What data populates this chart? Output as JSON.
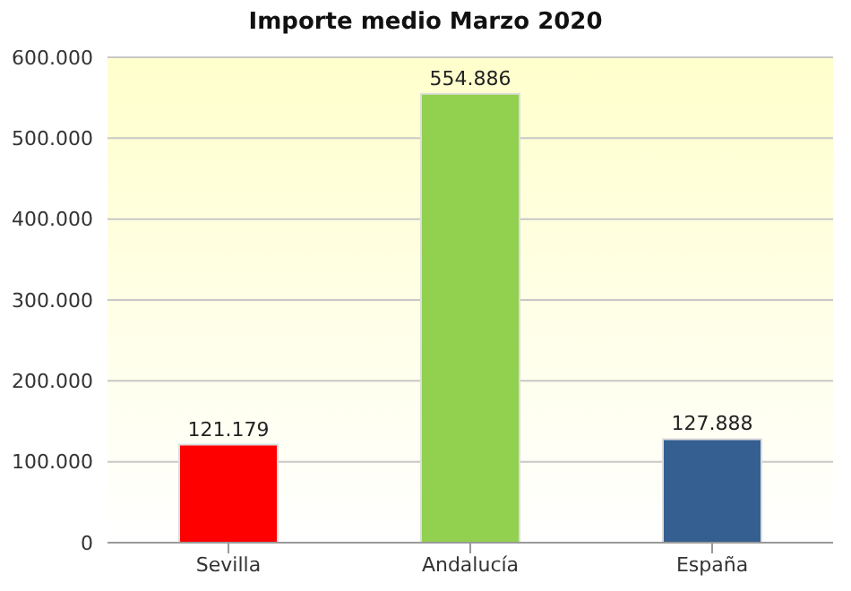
{
  "chart_data": {
    "type": "bar",
    "title": "Importe medio Marzo 2020",
    "categories": [
      "Sevilla",
      "Andalucía",
      "España"
    ],
    "values": [
      121179,
      554886,
      127888
    ],
    "colors": [
      "#ff0000",
      "#92d050",
      "#355f91"
    ],
    "value_labels": [
      "121.179",
      "554.886",
      "127.888"
    ],
    "ylim": [
      0,
      600000
    ],
    "yticks": [
      0,
      {
        "value": 100000,
        "label": "100.000"
      },
      {
        "value": 200000,
        "label": "200.000"
      },
      {
        "value": 300000,
        "label": "300.000"
      },
      {
        "value": 400000,
        "label": "400.000"
      },
      {
        "value": 500000,
        "label": "500.000"
      },
      {
        "value": 600000,
        "label": "600.000"
      }
    ],
    "grid": "y",
    "legend": false
  }
}
